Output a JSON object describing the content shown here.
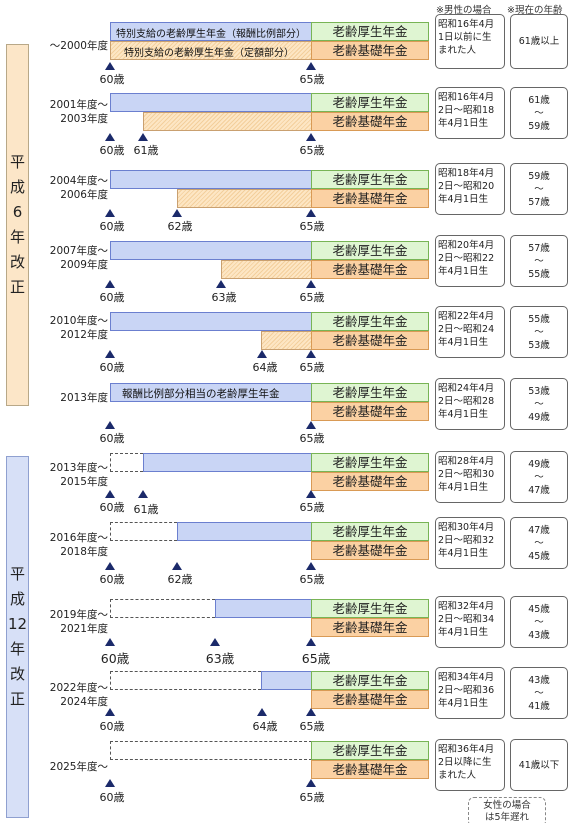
{
  "header": {
    "male_label": "※男性の場合",
    "current_age_label": "※現在の年齢"
  },
  "eras": [
    {
      "chars": [
        "平",
        "成",
        "6",
        "年",
        "改",
        "正"
      ]
    },
    {
      "chars": [
        "平",
        "成",
        "12",
        "年",
        "改",
        "正"
      ]
    }
  ],
  "labels": {
    "green": "老齢厚生年金",
    "orange": "老齢基礎年金",
    "row0_top": "特別支給の老齢厚生年金（報酬比例部分）",
    "row0_bottom": "特別支給の老齢厚生年金（定額部分）",
    "row5_blue": "報酬比例部分相当の老齢厚生年金"
  },
  "rows": [
    {
      "years": [
        "～2000年度"
      ],
      "ticks": [
        "60歳",
        "65歳"
      ],
      "birth": [
        "昭和16年4月",
        "1日以前に生",
        "まれた人"
      ],
      "age": [
        "61歳以上"
      ]
    },
    {
      "years": [
        "2001年度～",
        "2003年度"
      ],
      "ticks": [
        "60歳",
        "61歳",
        "65歳"
      ],
      "birth": [
        "昭和16年4月",
        "2日～昭和18",
        "年4月1日生"
      ],
      "age": [
        "61歳",
        "～",
        "59歳"
      ]
    },
    {
      "years": [
        "2004年度～",
        "2006年度"
      ],
      "ticks": [
        "60歳",
        "62歳",
        "65歳"
      ],
      "birth": [
        "昭和18年4月",
        "2日～昭和20",
        "年4月1日生"
      ],
      "age": [
        "59歳",
        "～",
        "57歳"
      ]
    },
    {
      "years": [
        "2007年度～",
        "2009年度"
      ],
      "ticks": [
        "60歳",
        "63歳",
        "65歳"
      ],
      "birth": [
        "昭和20年4月",
        "2日～昭和22",
        "年4月1日生"
      ],
      "age": [
        "57歳",
        "～",
        "55歳"
      ]
    },
    {
      "years": [
        "2010年度～",
        "2012年度"
      ],
      "ticks": [
        "60歳",
        "64歳",
        "65歳"
      ],
      "birth": [
        "昭和22年4月",
        "2日～昭和24",
        "年4月1日生"
      ],
      "age": [
        "55歳",
        "～",
        "53歳"
      ]
    },
    {
      "years": [
        "2013年度"
      ],
      "ticks": [
        "60歳",
        "65歳"
      ],
      "birth": [
        "昭和24年4月",
        "2日～昭和28",
        "年4月1日生"
      ],
      "age": [
        "53歳",
        "～",
        "49歳"
      ]
    },
    {
      "years": [
        "2013年度～",
        "2015年度"
      ],
      "ticks": [
        "60歳",
        "61歳",
        "65歳"
      ],
      "birth": [
        "昭和28年4月",
        "2日～昭和30",
        "年4月1日生"
      ],
      "age": [
        "49歳",
        "～",
        "47歳"
      ]
    },
    {
      "years": [
        "2016年度～",
        "2018年度"
      ],
      "ticks": [
        "60歳",
        "62歳",
        "65歳"
      ],
      "birth": [
        "昭和30年4月",
        "2日～昭和32",
        "年4月1日生"
      ],
      "age": [
        "47歳",
        "～",
        "45歳"
      ]
    },
    {
      "years": [
        "2019年度～",
        "2021年度"
      ],
      "ticks": [
        "60歳",
        "63歳",
        "65歳"
      ],
      "birth": [
        "昭和32年4月",
        "2日～昭和34",
        "年4月1日生"
      ],
      "age": [
        "45歳",
        "～",
        "43歳"
      ]
    },
    {
      "years": [
        "2022年度～",
        "2024年度"
      ],
      "ticks": [
        "60歳",
        "64歳",
        "65歳"
      ],
      "birth": [
        "昭和34年4月",
        "2日～昭和36",
        "年4月1日生"
      ],
      "age": [
        "43歳",
        "～",
        "41歳"
      ]
    },
    {
      "years": [
        "2025年度～"
      ],
      "ticks": [
        "60歳",
        "65歳"
      ],
      "birth": [
        "昭和36年4月",
        "2日以降に生",
        "まれた人"
      ],
      "age": [
        "41歳以下"
      ]
    }
  ],
  "footer": {
    "note": [
      "女性の場合",
      "は5年遅れ"
    ]
  }
}
